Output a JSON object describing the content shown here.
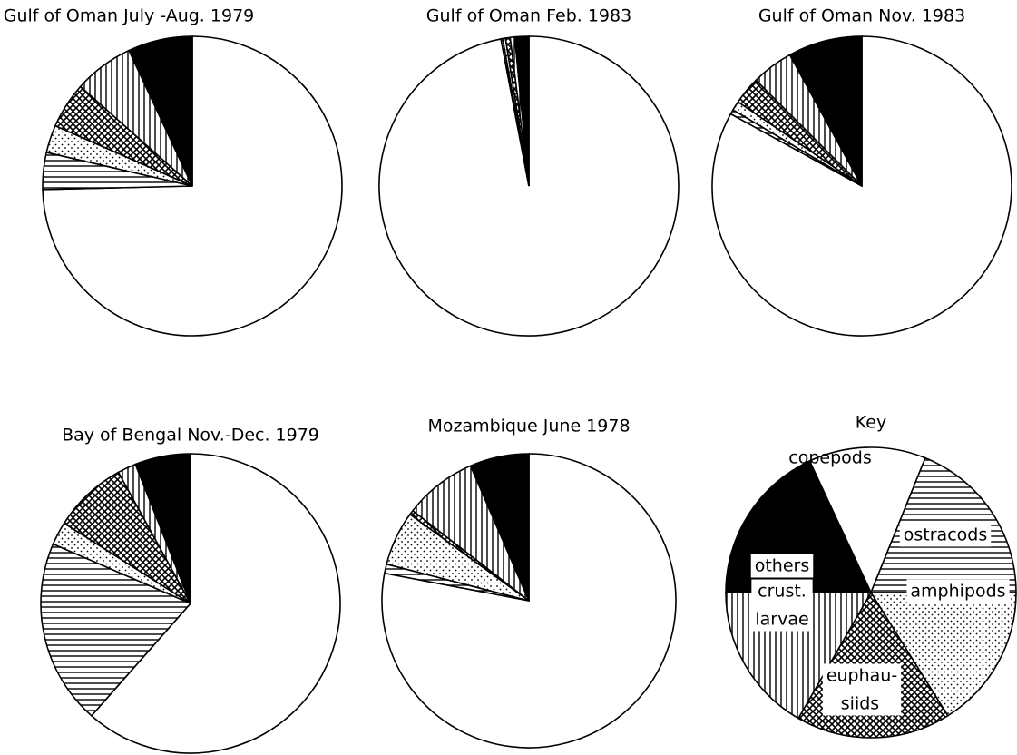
{
  "chart_data": [
    {
      "type": "pie",
      "title": "Gulf of Oman July -Aug. 1979",
      "values": [
        75,
        4,
        3,
        5,
        6.5,
        7
      ]
    },
    {
      "type": "pie",
      "title": "Gulf of Oman  Feb. 1983",
      "values": [
        97,
        0.2,
        0.3,
        0.5,
        0.5,
        1.5
      ]
    },
    {
      "type": "pie",
      "title": "Gulf of Oman  Nov. 1983",
      "values": [
        83,
        0.5,
        1,
        3,
        4.5,
        8
      ]
    },
    {
      "type": "pie",
      "title": "Bay of Bengal  Nov.-Dec. 1979",
      "values": [
        61.5,
        20,
        2.5,
        8,
        2,
        6
      ]
    },
    {
      "type": "pie",
      "title": "Mozambique  June 1978",
      "values": [
        78,
        1,
        6,
        0.5,
        8,
        6.5
      ]
    }
  ],
  "key": {
    "title": "Key",
    "labels": [
      [
        "copepods"
      ],
      [
        "ostracods"
      ],
      [
        "amphipods"
      ],
      [
        "euphau-",
        "siids"
      ],
      [
        "crust.",
        "larvae"
      ],
      [
        "others"
      ]
    ],
    "patterns": [
      "none",
      "horizontal",
      "dots",
      "crosshatch",
      "vertical",
      "solid"
    ]
  }
}
